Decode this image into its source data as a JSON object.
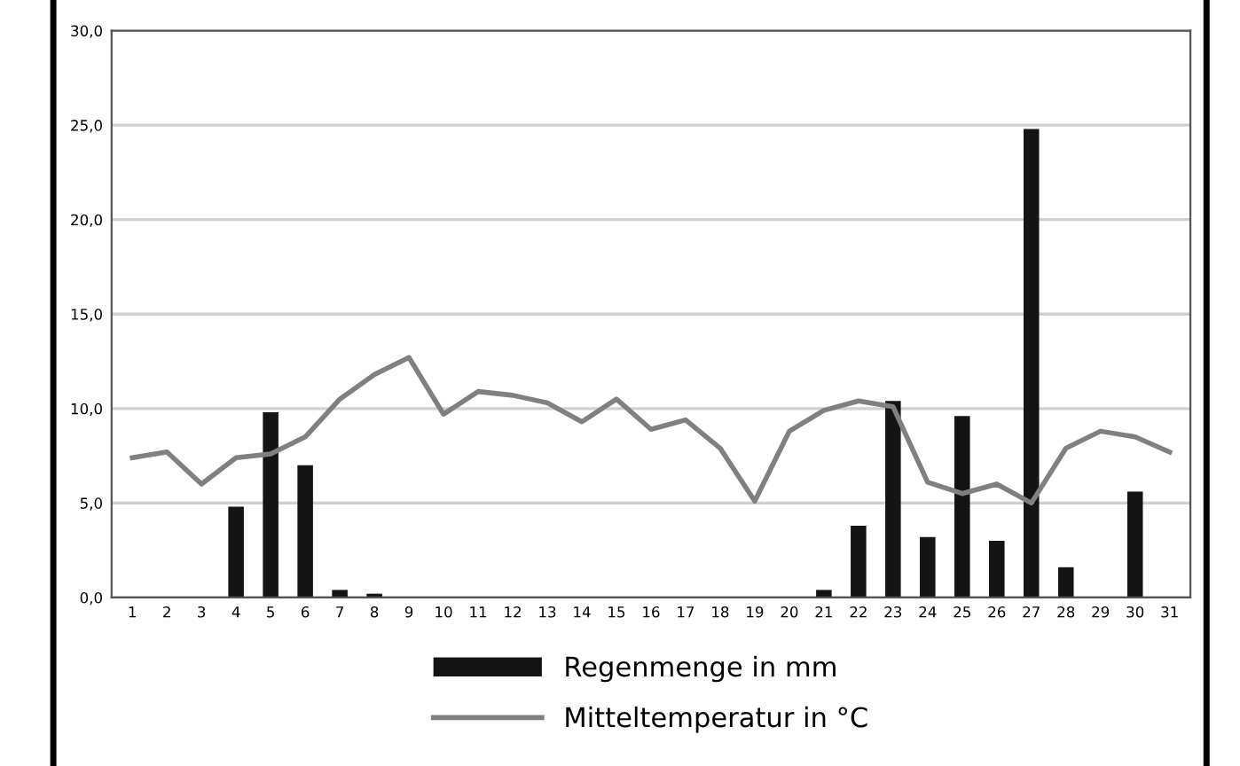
{
  "chart_data": {
    "type": "bar",
    "categories": [
      "1",
      "2",
      "3",
      "4",
      "5",
      "6",
      "7",
      "8",
      "9",
      "10",
      "11",
      "12",
      "13",
      "14",
      "15",
      "16",
      "17",
      "18",
      "19",
      "20",
      "21",
      "22",
      "23",
      "24",
      "25",
      "26",
      "27",
      "28",
      "29",
      "30",
      "31"
    ],
    "series": [
      {
        "name": "Regenmenge in mm",
        "color": "#141414",
        "values": [
          0,
          0,
          0,
          4.8,
          9.8,
          7.0,
          0.4,
          0.2,
          0,
          0,
          0,
          0,
          0,
          0,
          0,
          0,
          0,
          0,
          0,
          0,
          0.4,
          3.8,
          10.4,
          3.2,
          9.6,
          3.0,
          24.8,
          1.6,
          0,
          5.6,
          0
        ]
      },
      {
        "name": "Mitteltemperatur in °C",
        "type": "line",
        "color": "#808080",
        "values": [
          7.4,
          7.7,
          6.0,
          7.4,
          7.6,
          8.5,
          10.5,
          11.8,
          12.7,
          9.7,
          10.9,
          10.7,
          10.3,
          9.3,
          10.5,
          8.9,
          9.4,
          7.9,
          5.1,
          8.8,
          9.9,
          10.4,
          10.1,
          6.1,
          5.5,
          6.0,
          5.0,
          7.9,
          8.8,
          8.5,
          7.7
        ]
      }
    ],
    "ylim": [
      0,
      30
    ],
    "yticks": [
      {
        "value": 0,
        "label": "0,0"
      },
      {
        "value": 5,
        "label": "5,0"
      },
      {
        "value": 10,
        "label": "10,0"
      },
      {
        "value": 15,
        "label": "15,0"
      },
      {
        "value": 20,
        "label": "20,0"
      },
      {
        "value": 25,
        "label": "25,0"
      },
      {
        "value": 30,
        "label": "30,0"
      }
    ],
    "grid": "y",
    "legend": "bottom",
    "marker": "none",
    "line_style": "solid"
  }
}
